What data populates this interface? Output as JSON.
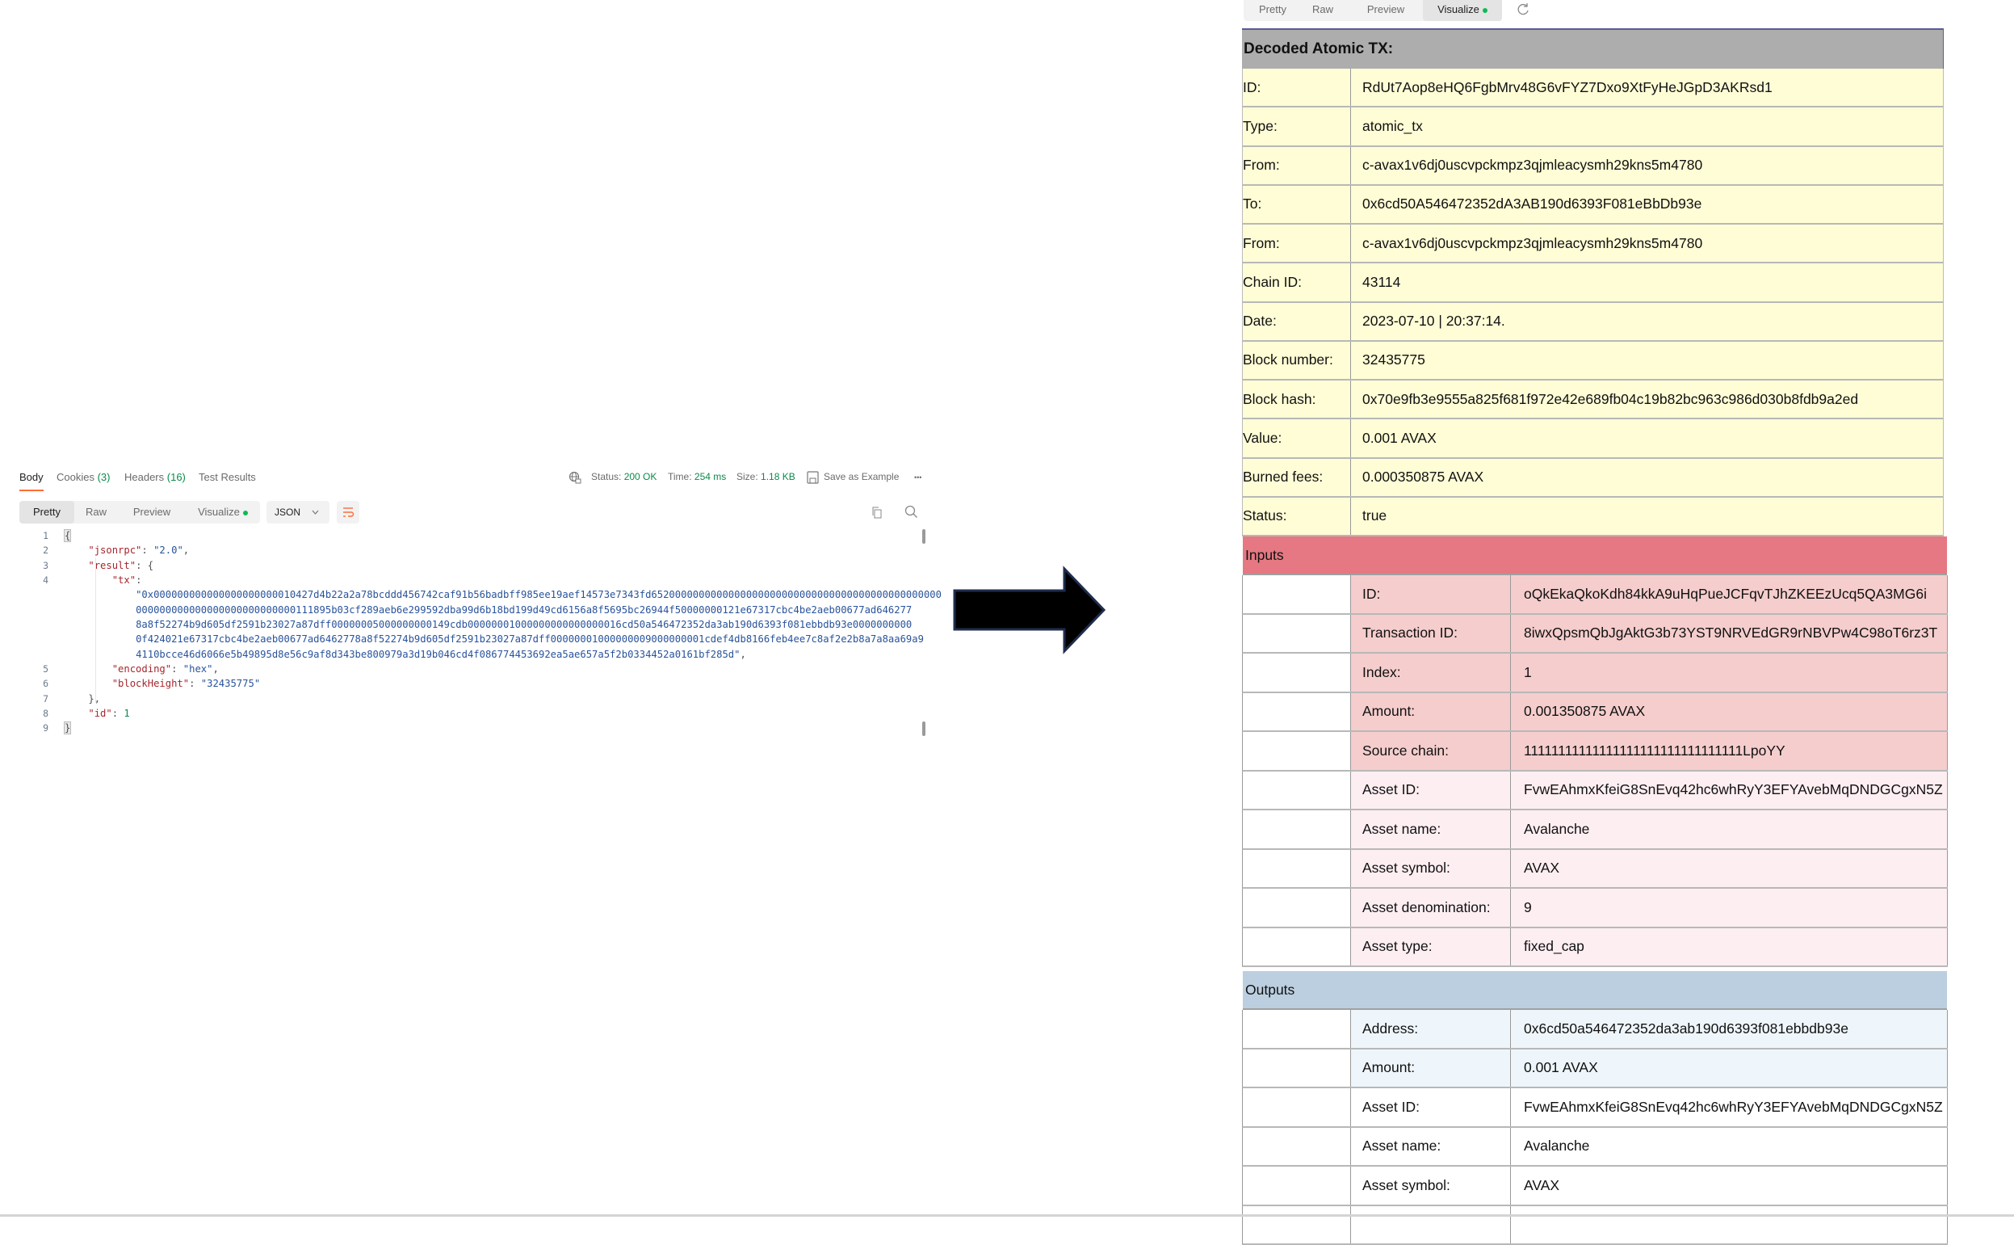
{
  "response_tabs": [
    {
      "label": "Body",
      "count": "",
      "active": true
    },
    {
      "label": "Cookies",
      "count": "(3)",
      "active": false
    },
    {
      "label": "Headers",
      "count": "(16)",
      "active": false
    },
    {
      "label": "Test Results",
      "count": "",
      "active": false
    }
  ],
  "status_bar": {
    "status_label": "Status:",
    "status_value": "200 OK",
    "time_label": "Time:",
    "time_value": "254 ms",
    "size_label": "Size:",
    "size_value": "1.18 KB",
    "save_example": "Save as Example",
    "more": "•••"
  },
  "view_tabs": [
    "Pretty",
    "Raw",
    "Preview",
    "Visualize"
  ],
  "format_select": "JSON",
  "code_lines": [
    {
      "num": "1",
      "tokens": [
        [
          "{",
          "p brace"
        ]
      ]
    },
    {
      "num": "2",
      "tokens": [
        [
          "    ",
          "p"
        ],
        [
          "\"jsonrpc\"",
          "k"
        ],
        [
          ": ",
          "p"
        ],
        [
          "\"2.0\"",
          "s"
        ],
        [
          ",",
          "p"
        ]
      ]
    },
    {
      "num": "3",
      "tokens": [
        [
          "    ",
          "p"
        ],
        [
          "\"result\"",
          "k"
        ],
        [
          ": {",
          "p"
        ]
      ]
    },
    {
      "num": "4",
      "tokens": [
        [
          "        ",
          "p"
        ],
        [
          "\"tx\"",
          "k"
        ],
        [
          ":",
          "p"
        ]
      ]
    },
    {
      "num": "",
      "tokens": [
        [
          "            ",
          "p"
        ],
        [
          "\"0x000000000000000000000010427d4b22a2a78bcddd456742caf91b56badbff985ee19aef14573e7343fd6520000000000000000000000000000000000000000000000",
          "s"
        ]
      ]
    },
    {
      "num": "",
      "tokens": [
        [
          "            ",
          "p"
        ],
        [
          "000000000000000000000000000111895b03cf289aeb6e299592dba99d6b18bd199d49cd6156a8f5695bc26944f50000000121e67317cbc4be2aeb00677ad646277",
          "s"
        ]
      ]
    },
    {
      "num": "",
      "tokens": [
        [
          "            ",
          "p"
        ],
        [
          "8a8f52274b9d605df2591b23027a87dff00000005000000000149cdb00000001000000000000000016cd50a546472352da3ab190d6393f081ebbdb93e0000000000",
          "s"
        ]
      ]
    },
    {
      "num": "",
      "tokens": [
        [
          "            ",
          "p"
        ],
        [
          "0f424021e67317cbc4be2aeb00677ad6462778a8f52274b9d605df2591b23027a87dff00000001000000009000000001cdef4db8166feb4ee7c8af2e2b8a7a8aa69a9",
          "s"
        ]
      ]
    },
    {
      "num": "",
      "tokens": [
        [
          "            ",
          "p"
        ],
        [
          "4110bcce46d6066e5b49895d8e56c9af8d343be800979a3d19b046cd4f086774453692ea5ae657a5f2b0334452a0161bf285d\"",
          "s"
        ],
        [
          ",",
          "p"
        ]
      ]
    },
    {
      "num": "5",
      "tokens": [
        [
          "        ",
          "p"
        ],
        [
          "\"encoding\"",
          "k"
        ],
        [
          ": ",
          "p"
        ],
        [
          "\"hex\"",
          "s"
        ],
        [
          ",",
          "p"
        ]
      ]
    },
    {
      "num": "6",
      "tokens": [
        [
          "        ",
          "p"
        ],
        [
          "\"blockHeight\"",
          "k"
        ],
        [
          ": ",
          "p"
        ],
        [
          "\"32435775\"",
          "s"
        ]
      ]
    },
    {
      "num": "7",
      "tokens": [
        [
          "    ",
          "p"
        ],
        [
          "},",
          "p"
        ]
      ]
    },
    {
      "num": "8",
      "tokens": [
        [
          "    ",
          "p"
        ],
        [
          "\"id\"",
          "k"
        ],
        [
          ": ",
          "p"
        ],
        [
          "1",
          "n"
        ]
      ]
    },
    {
      "num": "9",
      "tokens": [
        [
          "}",
          "p brace"
        ]
      ]
    }
  ],
  "visualize": {
    "tabs": [
      "Pretty",
      "Raw",
      "Preview",
      "Visualize"
    ],
    "active_tab": "Visualize",
    "title": "Decoded Atomic TX:",
    "rows": [
      {
        "label": "ID:",
        "value": "RdUt7Aop8eHQ6FgbMrv48G6vFYZ7Dxo9XtFyHeJGpD3AKRsd1"
      },
      {
        "label": "Type:",
        "value": "atomic_tx"
      },
      {
        "label": "From:",
        "value": "c-avax1v6dj0uscvpckmpz3qjmleacysmh29kns5m4780"
      },
      {
        "label": "To:",
        "value": "0x6cd50A546472352dA3AB190d6393F081eBbDb93e"
      },
      {
        "label": "From:",
        "value": "c-avax1v6dj0uscvpckmpz3qjmleacysmh29kns5m4780"
      },
      {
        "label": "Chain ID:",
        "value": "43114"
      },
      {
        "label": "Date:",
        "value": "2023-07-10 | 20:37:14."
      },
      {
        "label": "Block number:",
        "value": "32435775"
      },
      {
        "label": "Block hash:",
        "value": "0x70e9fb3e9555a825f681f972e42e689fb04c19b82bc963c986d030b8fdb9a2ed"
      },
      {
        "label": "Value:",
        "value": "0.001 AVAX"
      },
      {
        "label": "Burned fees:",
        "value": "0.000350875 AVAX"
      },
      {
        "label": "Status:",
        "value": "true"
      }
    ],
    "inputs": {
      "title": "Inputs",
      "rows": [
        {
          "label": "ID:",
          "value": "oQkEkaQkoKdh84kkA9uHqPueJCFqvTJhZKEEzUcq5QA3MG6i",
          "group": "utxo"
        },
        {
          "label": "Transaction ID:",
          "value": "8iwxQpsmQbJgAktG3b73YST9NRVEdGR9rNBVPw4C98oT6rz3T",
          "group": "utxo"
        },
        {
          "label": "Index:",
          "value": "1",
          "group": "utxo"
        },
        {
          "label": "Amount:",
          "value": "0.001350875 AVAX",
          "group": "utxo"
        },
        {
          "label": "Source chain:",
          "value": "11111111111111111111111111111111LpoYY",
          "group": "utxo"
        },
        {
          "label": "Asset ID:",
          "value": "FvwEAhmxKfeiG8SnEvq42hc6whRyY3EFYAvebMqDNDGCgxN5Z",
          "group": "asset"
        },
        {
          "label": "Asset name:",
          "value": "Avalanche",
          "group": "asset"
        },
        {
          "label": "Asset symbol:",
          "value": "AVAX",
          "group": "asset"
        },
        {
          "label": "Asset denomination:",
          "value": "9",
          "group": "asset"
        },
        {
          "label": "Asset type:",
          "value": "fixed_cap",
          "group": "asset"
        }
      ]
    },
    "outputs": {
      "title": "Outputs",
      "rows": [
        {
          "label": "Address:",
          "value": "0x6cd50a546472352da3ab190d6393f081ebbdb93e",
          "group": "utxo"
        },
        {
          "label": "Amount:",
          "value": "0.001 AVAX",
          "group": "utxo"
        },
        {
          "label": "Asset ID:",
          "value": "FvwEAhmxKfeiG8SnEvq42hc6whRyY3EFYAvebMqDNDGCgxN5Z",
          "group": "asset"
        },
        {
          "label": "Asset name:",
          "value": "Avalanche",
          "group": "asset"
        },
        {
          "label": "Asset symbol:",
          "value": "AVAX",
          "group": "asset"
        },
        {
          "label": "",
          "value": "",
          "group": "asset"
        }
      ]
    }
  },
  "colors": {
    "accent": "#ff6c37",
    "header_gray": "#adadad",
    "info_row": "#fffdd6",
    "inputs_header": "#e57882",
    "inputs_utxo": "#f5cdcd",
    "inputs_asset": "#fdeef2",
    "outputs_header": "#bccfe0",
    "outputs_utxo": "#eef6fc",
    "outputs_asset": "#ffffff"
  },
  "icons": [
    "globe-lock-icon",
    "save-icon",
    "more-icon",
    "wrap-lines-icon",
    "copy-icon",
    "search-icon",
    "chevron-down-icon",
    "refresh-icon",
    "arrow-right-icon"
  ]
}
